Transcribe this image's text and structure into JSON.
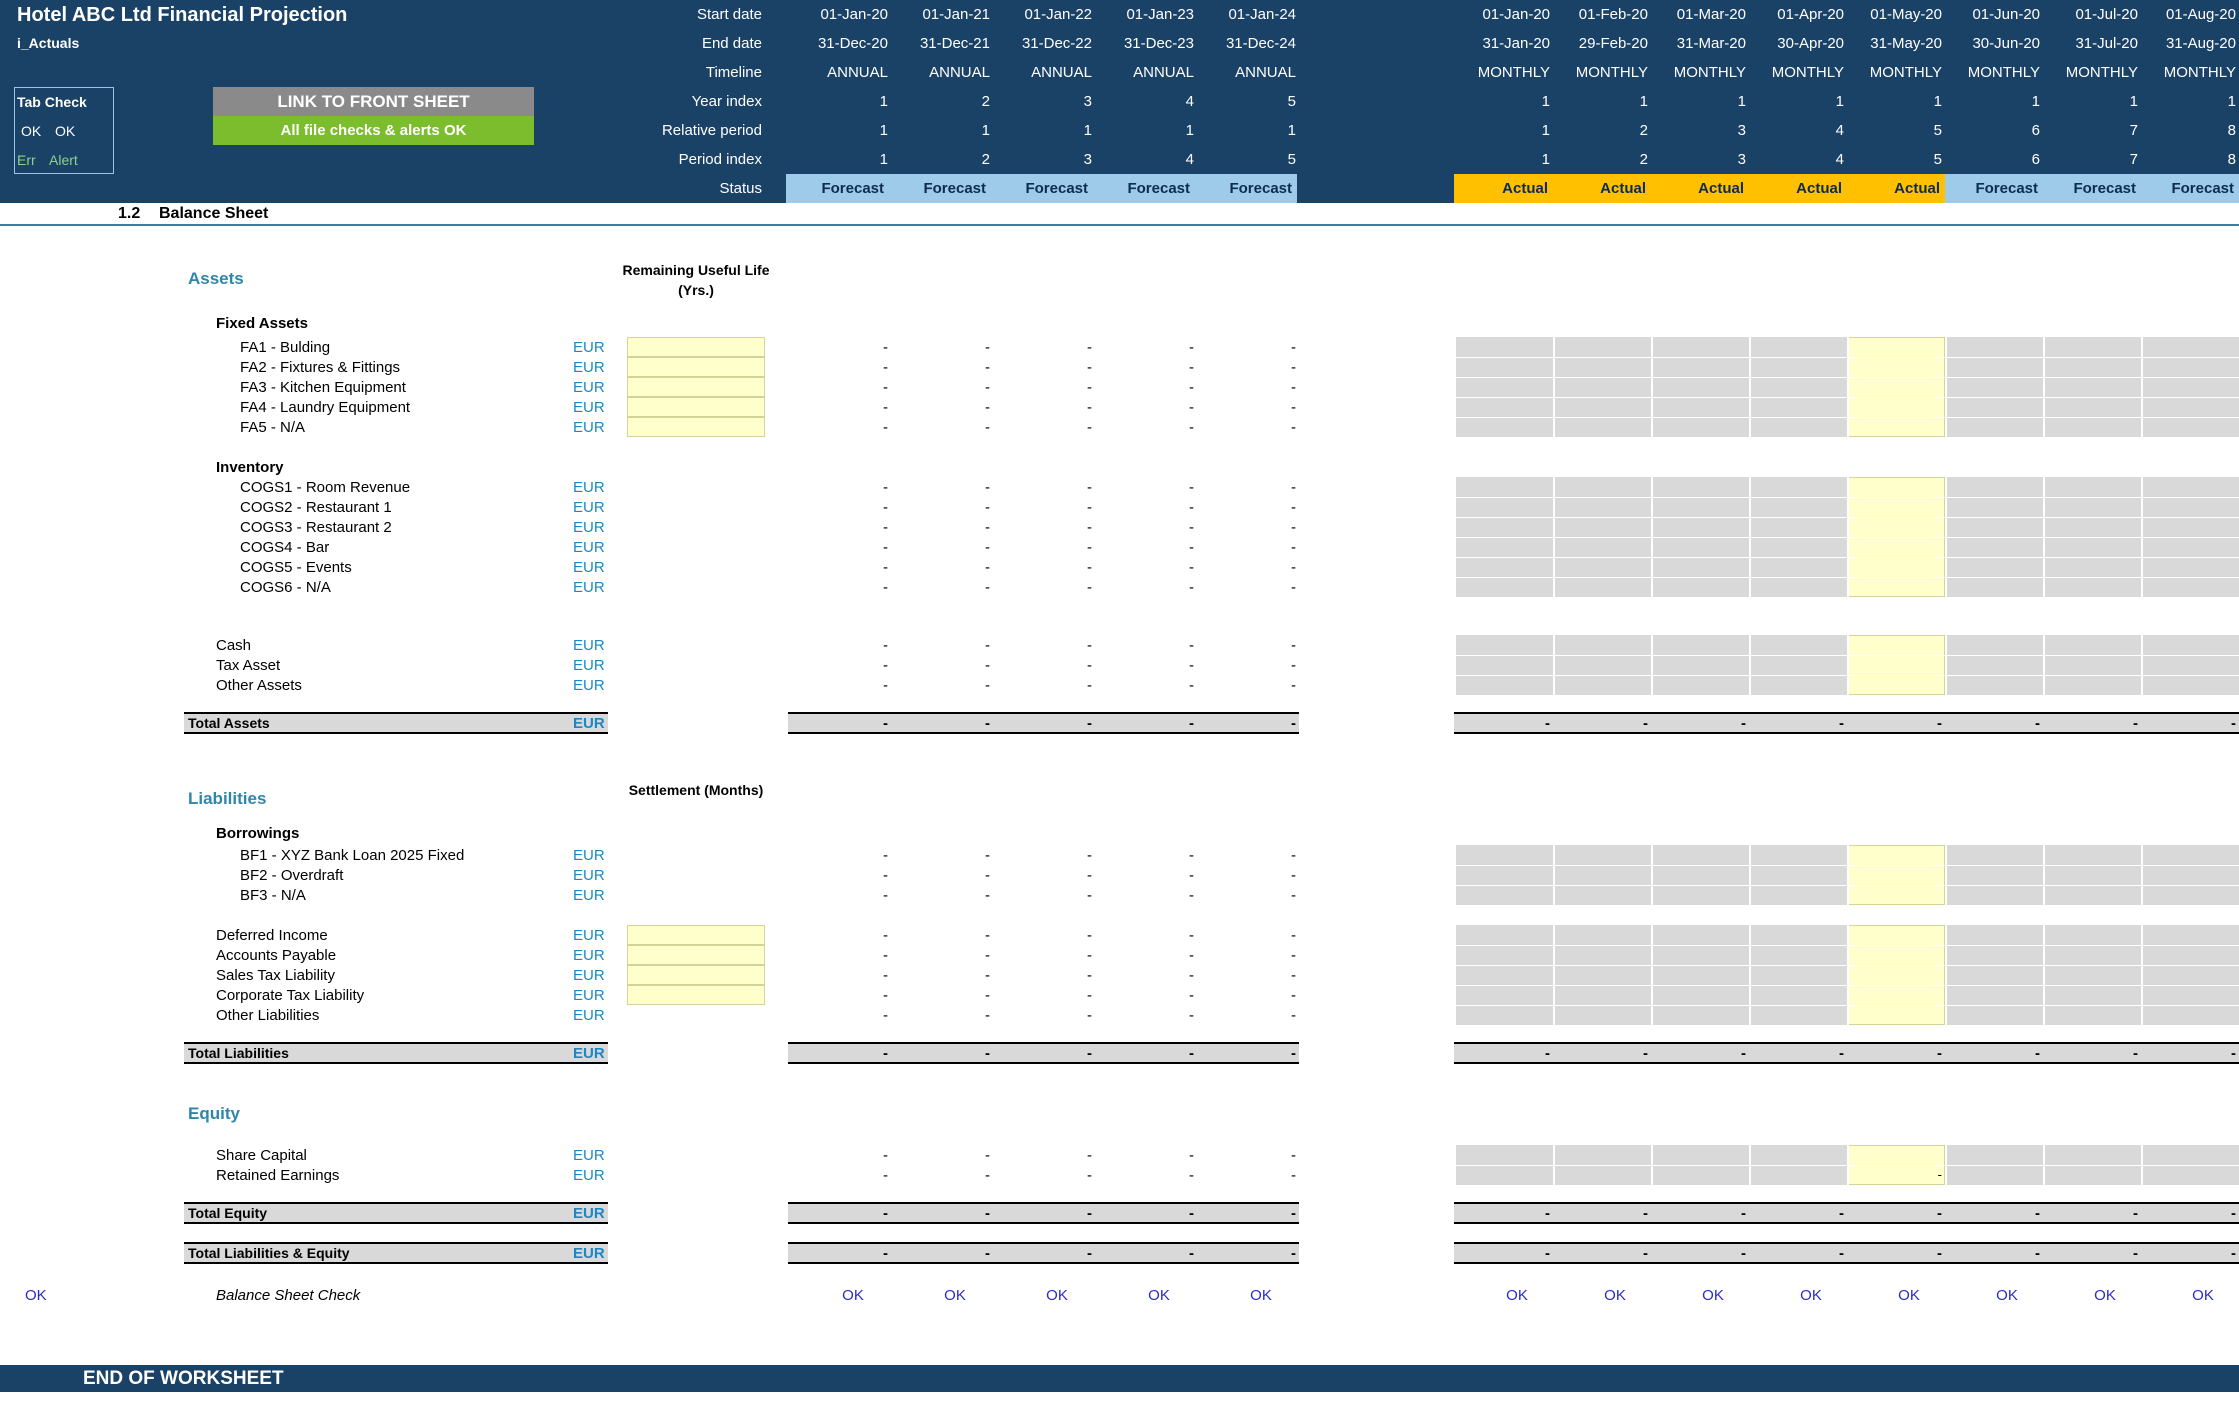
{
  "title": "Hotel ABC Ltd Financial Projection",
  "subtitle": "i_Actuals",
  "tab_check": {
    "label": "Tab Check",
    "ok1": "OK",
    "ok2": "OK",
    "err": "Err",
    "alert": "Alert"
  },
  "buttons": {
    "link": "LINK TO FRONT SHEET",
    "checks": "All file checks & alerts OK"
  },
  "row_labels": {
    "start": "Start date",
    "end": "End date",
    "timeline": "Timeline",
    "year": "Year index",
    "rel": "Relative period",
    "period": "Period index",
    "status": "Status"
  },
  "annual": {
    "start": [
      "01-Jan-20",
      "01-Jan-21",
      "01-Jan-22",
      "01-Jan-23",
      "01-Jan-24"
    ],
    "end": [
      "31-Dec-20",
      "31-Dec-21",
      "31-Dec-22",
      "31-Dec-23",
      "31-Dec-24"
    ],
    "timeline": [
      "ANNUAL",
      "ANNUAL",
      "ANNUAL",
      "ANNUAL",
      "ANNUAL"
    ],
    "year": [
      "1",
      "2",
      "3",
      "4",
      "5"
    ],
    "rel": [
      "1",
      "1",
      "1",
      "1",
      "1"
    ],
    "period": [
      "1",
      "2",
      "3",
      "4",
      "5"
    ],
    "status": [
      "Forecast",
      "Forecast",
      "Forecast",
      "Forecast",
      "Forecast"
    ]
  },
  "monthly": {
    "start": [
      "01-Jan-20",
      "01-Feb-20",
      "01-Mar-20",
      "01-Apr-20",
      "01-May-20",
      "01-Jun-20",
      "01-Jul-20",
      "01-Aug-20"
    ],
    "end": [
      "31-Jan-20",
      "29-Feb-20",
      "31-Mar-20",
      "30-Apr-20",
      "31-May-20",
      "30-Jun-20",
      "31-Jul-20",
      "31-Aug-20"
    ],
    "timeline": [
      "MONTHLY",
      "MONTHLY",
      "MONTHLY",
      "MONTHLY",
      "MONTHLY",
      "MONTHLY",
      "MONTHLY",
      "MONTHLY"
    ],
    "year": [
      "1",
      "1",
      "1",
      "1",
      "1",
      "1",
      "1",
      "1"
    ],
    "rel": [
      "1",
      "2",
      "3",
      "4",
      "5",
      "6",
      "7",
      "8"
    ],
    "period": [
      "1",
      "2",
      "3",
      "4",
      "5",
      "6",
      "7",
      "8"
    ],
    "status": [
      "Actual",
      "Actual",
      "Actual",
      "Actual",
      "Actual",
      "Forecast",
      "Forecast",
      "Forecast"
    ]
  },
  "section": {
    "number": "1.2",
    "name": "Balance Sheet"
  },
  "assets": {
    "heading": "Assets",
    "rul_header": "Remaining Useful Life (Yrs.)",
    "fixed": {
      "heading": "Fixed Assets",
      "items": [
        "FA1 - Bulding",
        "FA2 - Fixtures & Fittings",
        "FA3 - Kitchen Equipment",
        "FA4 - Laundry Equipment",
        "FA5 - N/A"
      ]
    },
    "inventory": {
      "heading": "Inventory",
      "items": [
        "COGS1 - Room Revenue",
        "COGS2 - Restaurant 1",
        "COGS3 - Restaurant 2",
        "COGS4 - Bar",
        "COGS5 - Events",
        "COGS6 - N/A"
      ]
    },
    "other": [
      "Cash",
      "Tax Asset",
      "Other Assets"
    ],
    "total": "Total Assets"
  },
  "liabilities": {
    "heading": "Liabilities",
    "settle_header": "Settlement (Months)",
    "borrowings": {
      "heading": "Borrowings",
      "items": [
        "BF1 - XYZ Bank Loan 2025 Fixed",
        "BF2 - Overdraft",
        "BF3 - N/A"
      ]
    },
    "other": [
      "Deferred Income",
      "Accounts Payable",
      "Sales Tax Liability",
      "Corporate Tax Liability",
      "Other Liabilities"
    ],
    "total": "Total Liabilities"
  },
  "equity": {
    "heading": "Equity",
    "items": [
      "Share Capital",
      "Retained Earnings"
    ],
    "total": "Total Equity",
    "total_le": "Total Liabilities & Equity"
  },
  "unit": "EUR",
  "dash": "-",
  "check": {
    "label": "Balance Sheet Check",
    "ok": "OK"
  },
  "footer": "END OF WORKSHEET"
}
